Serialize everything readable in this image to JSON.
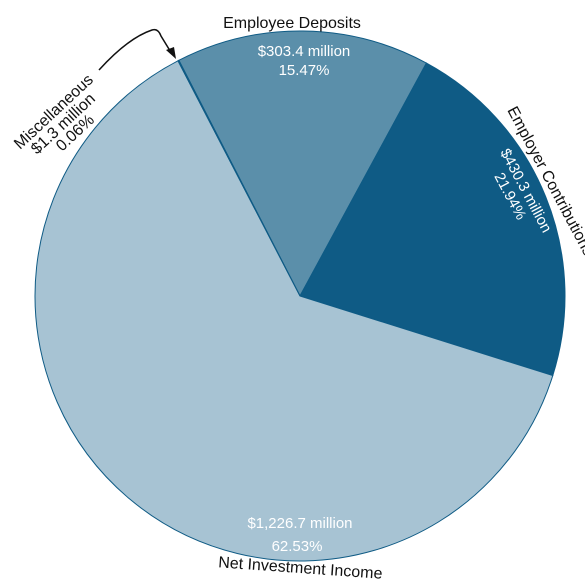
{
  "chart_data": {
    "type": "pie",
    "title": "",
    "slices": [
      {
        "label": "Employee Deposits",
        "amount": "$303.4 million",
        "percent_text": "15.47%",
        "value": 15.47,
        "color": "#5b8faa",
        "text_color": "#ffffff"
      },
      {
        "label": "Employer Contributions",
        "amount": "$430.3 million",
        "percent_text": "21.94%",
        "value": 21.94,
        "color": "#0f5b85",
        "text_color": "#ffffff"
      },
      {
        "label": "Net Investment Income",
        "amount": "$1,226.7 million",
        "percent_text": "62.53%",
        "value": 62.53,
        "color": "#a7c3d3",
        "text_color": "#ffffff"
      },
      {
        "label": "Miscellaneous",
        "amount": "$1.3 million",
        "percent_text": "0.06%",
        "value": 0.06,
        "color": "#a7c3d3",
        "text_color": "#111111"
      }
    ],
    "start_slice_label": "Employee Deposits",
    "slice_border_color": "#0f5b85"
  }
}
